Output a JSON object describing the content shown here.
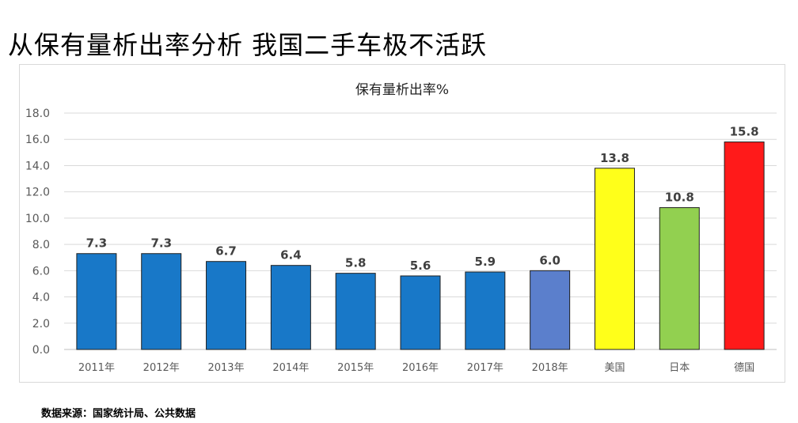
{
  "page": {
    "title": "从保有量析出率分析  我国二手车极不活跃",
    "source": "数据来源：国家统计局、公共数据"
  },
  "chart_data": {
    "type": "bar",
    "title": "保有量析出率%",
    "xlabel": "",
    "ylabel": "",
    "categories": [
      "2011年",
      "2012年",
      "2013年",
      "2014年",
      "2015年",
      "2016年",
      "2017年",
      "2018年",
      "美国",
      "日本",
      "德国"
    ],
    "values": [
      7.3,
      7.3,
      6.7,
      6.4,
      5.8,
      5.6,
      5.9,
      6.0,
      13.8,
      10.8,
      15.8
    ],
    "value_labels": [
      "7.3",
      "7.3",
      "6.7",
      "6.4",
      "5.8",
      "5.6",
      "5.9",
      "6.0",
      "13.8",
      "10.8",
      "15.8"
    ],
    "bar_colors": [
      "#1878c8",
      "#1878c8",
      "#1878c8",
      "#1878c8",
      "#1878c8",
      "#1878c8",
      "#1878c8",
      "#5b7fcc",
      "#ffff1a",
      "#92d050",
      "#ff1a1a"
    ],
    "ylim": [
      0,
      18
    ],
    "yticks": [
      "0.0",
      "2.0",
      "4.0",
      "6.0",
      "8.0",
      "10.0",
      "12.0",
      "14.0",
      "16.0",
      "18.0"
    ],
    "grid": true,
    "legend": "none"
  }
}
